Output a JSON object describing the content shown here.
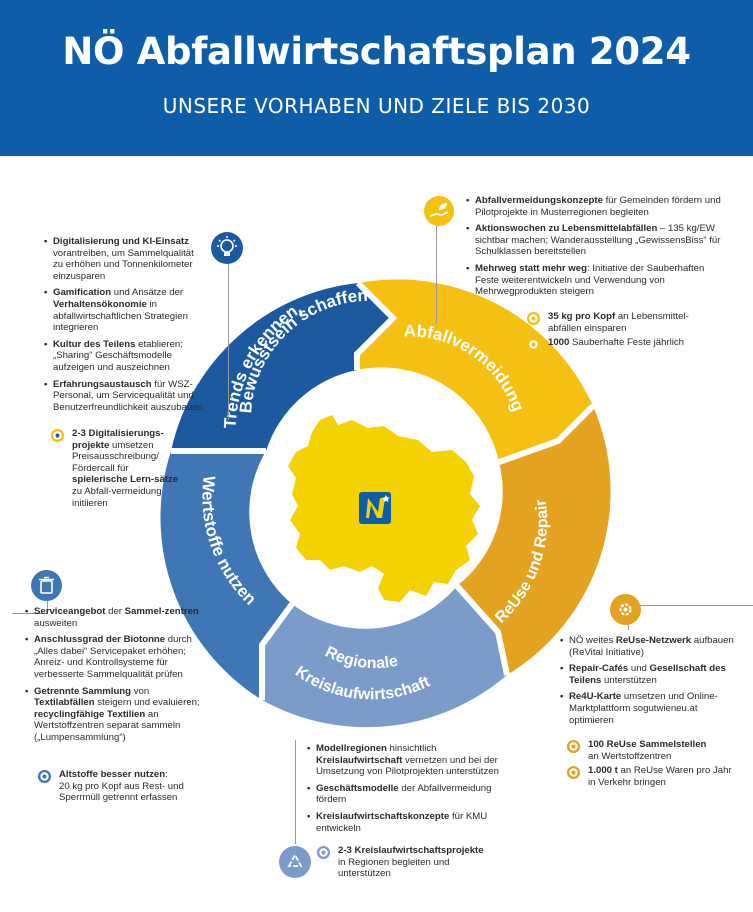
{
  "header": {
    "title": "NÖ Abfallwirtschaftsplan 2024",
    "subtitle": "UNSERE VORHABEN UND ZIELE BIS 2030"
  },
  "colors": {
    "header_bg": "#0d5da8",
    "trends": "#1b5aa1",
    "abfall": "#f6c012",
    "reuse": "#e3a321",
    "regional": "#7b9ccb",
    "wertstoffe": "#3f76b5",
    "map": "#f4d100"
  },
  "ring": {
    "trends": "Trends erkennen, Bewusstsein schaffen",
    "trends_line1": "Trends erkennen,",
    "trends_line2": "Bewusstsein schaffen",
    "abfall": "Abfallvermeidung",
    "reuse": "ReUse und Repair",
    "regional_line1": "Regionale",
    "regional_line2": "Kreislaufwirtschaft",
    "wertstoffe": "Wertstoffe nutzen"
  },
  "icons": {
    "trends": "lightbulb-icon",
    "abfall": "hand-leaf-icon",
    "reuse": "repair-gear-icon",
    "regional": "recycle-icon",
    "wertstoffe": "waste-bin-icon",
    "goal": "target-icon",
    "logo": "noe-logo"
  }
}
